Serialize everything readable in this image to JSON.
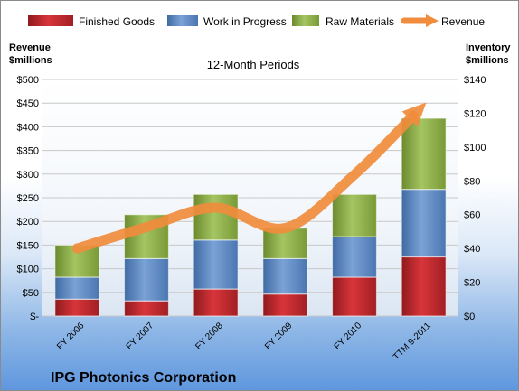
{
  "chart_data": {
    "type": "bar",
    "stacked": true,
    "subtitle": "12-Month Periods",
    "company": "IPG Photonics Corporation",
    "y_left_label": [
      "Revenue",
      "$millions"
    ],
    "y_right_label": [
      "Inventory",
      "$millions"
    ],
    "categories": [
      "FY 2006",
      "FY 2007",
      "FY 2008",
      "FY 2009",
      "FY 2010",
      "TTM 9-2011"
    ],
    "y_left_ticks": [
      "$-",
      "$50",
      "$100",
      "$150",
      "$200",
      "$250",
      "$300",
      "$350",
      "$400",
      "$450",
      "$500"
    ],
    "y_right_ticks": [
      "$0",
      "$20",
      "$40",
      "$60",
      "$80",
      "$100",
      "$120",
      "$140"
    ],
    "ylim_left": [
      0,
      500
    ],
    "ylim_right": [
      0,
      140
    ],
    "series": [
      {
        "name": "Finished Goods",
        "axis": "right",
        "color": "#c0262a",
        "values": [
          10,
          9,
          16,
          13,
          23,
          35
        ]
      },
      {
        "name": "Work in Progress",
        "axis": "right",
        "color": "#5b86c0",
        "values": [
          13,
          25,
          29,
          21,
          24,
          40
        ]
      },
      {
        "name": "Raw Materials",
        "axis": "right",
        "color": "#8aac45",
        "values": [
          19,
          26,
          27,
          18,
          25,
          42
        ]
      },
      {
        "name": "Revenue",
        "axis": "left",
        "type": "line",
        "color": "#f08c3c",
        "values": [
          143,
          188,
          229,
          186,
          299,
          446
        ]
      }
    ],
    "legend_position": "top",
    "grid": true
  }
}
